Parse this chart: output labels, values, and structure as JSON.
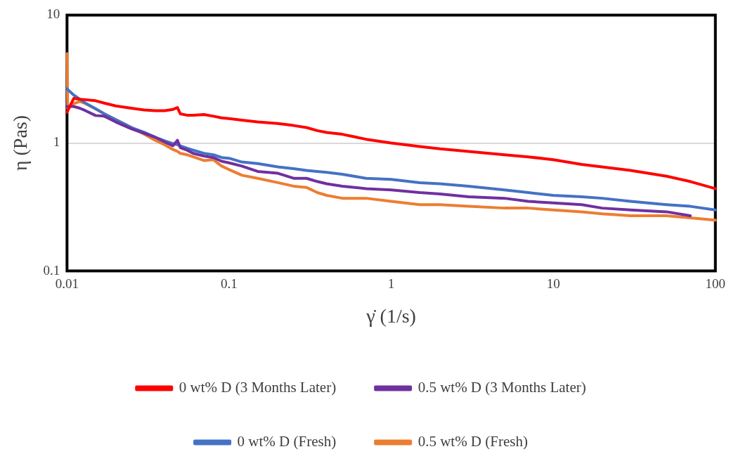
{
  "chart_data": {
    "type": "line",
    "xlabel": "γ̇ (1/s)",
    "ylabel": "η (Pas)",
    "log": "xy",
    "grid": "y",
    "legend": "bottom",
    "marker": "none",
    "line_style": "solid",
    "xlim": [
      0.01,
      100
    ],
    "xticks": [
      0.01,
      0.1,
      1,
      10,
      100
    ],
    "ylim": [
      0.1,
      10
    ],
    "yticks": [
      0.1,
      1,
      10
    ],
    "x": [
      0.01,
      0.011,
      0.012,
      0.013,
      0.015,
      0.017,
      0.02,
      0.025,
      0.03,
      0.035,
      0.04,
      0.045,
      0.048,
      0.05,
      0.055,
      0.06,
      0.07,
      0.08,
      0.09,
      0.1,
      0.12,
      0.15,
      0.2,
      0.25,
      0.3,
      0.35,
      0.4,
      0.5,
      0.7,
      1,
      1.5,
      2,
      3,
      5,
      7,
      10,
      15,
      20,
      30,
      50,
      70,
      100
    ],
    "series": [
      {
        "name": "0 wt% D (3 Months Later)",
        "color": "#ff0000",
        "values": [
          1.74,
          2.23,
          2.2,
          2.18,
          2.14,
          2.05,
          1.95,
          1.87,
          1.81,
          1.79,
          1.79,
          1.83,
          1.89,
          1.69,
          1.65,
          1.65,
          1.67,
          1.62,
          1.57,
          1.55,
          1.51,
          1.46,
          1.42,
          1.37,
          1.32,
          1.25,
          1.21,
          1.17,
          1.07,
          1.0,
          0.94,
          0.9,
          0.86,
          0.81,
          0.78,
          0.74,
          0.68,
          0.65,
          0.61,
          0.55,
          0.5,
          0.44
        ]
      },
      {
        "name": "0.5 wt% D (3 Months Later)",
        "color": "#7030a0",
        "values": [
          1.93,
          1.93,
          1.87,
          1.79,
          1.64,
          1.62,
          1.46,
          1.29,
          1.19,
          1.11,
          1.02,
          0.95,
          1.05,
          0.92,
          0.88,
          0.83,
          0.79,
          0.77,
          0.72,
          0.7,
          0.66,
          0.6,
          0.58,
          0.53,
          0.53,
          0.5,
          0.48,
          0.46,
          0.44,
          0.43,
          0.41,
          0.4,
          0.38,
          0.37,
          0.35,
          0.34,
          0.33,
          0.31,
          0.3,
          0.29,
          0.27,
          null
        ]
      },
      {
        "name": "0 wt% D (Fresh)",
        "color": "#4472c4",
        "values": [
          2.65,
          2.37,
          2.2,
          2.05,
          1.85,
          1.69,
          1.52,
          1.32,
          1.21,
          1.11,
          1.04,
          0.99,
          0.97,
          0.95,
          0.91,
          0.88,
          0.83,
          0.81,
          0.77,
          0.76,
          0.71,
          0.69,
          0.65,
          0.63,
          0.61,
          0.6,
          0.59,
          0.57,
          0.53,
          0.52,
          0.49,
          0.48,
          0.46,
          0.43,
          0.41,
          0.39,
          0.38,
          0.37,
          0.35,
          0.33,
          0.32,
          0.3
        ]
      },
      {
        "name": "0.5 wt% D (Fresh)",
        "color": "#ed7d31",
        "x": [
          0.01,
          0.0101,
          0.011,
          0.012,
          0.013,
          0.015,
          0.017,
          0.02,
          0.025,
          0.03,
          0.035,
          0.04,
          0.045,
          0.048,
          0.05,
          0.055,
          0.06,
          0.07,
          0.08,
          0.09,
          0.1,
          0.12,
          0.15,
          0.2,
          0.25,
          0.3,
          0.35,
          0.4,
          0.5,
          0.7,
          1,
          1.5,
          2,
          3,
          5,
          7,
          10,
          15,
          20,
          30,
          50,
          70,
          100
        ],
        "values": [
          5.0,
          1.85,
          2.03,
          2.11,
          2.03,
          1.85,
          1.69,
          1.52,
          1.32,
          1.17,
          1.05,
          0.97,
          0.89,
          0.86,
          0.83,
          0.81,
          0.78,
          0.73,
          0.74,
          0.66,
          0.62,
          0.56,
          0.53,
          0.49,
          0.46,
          0.45,
          0.41,
          0.39,
          0.37,
          0.37,
          0.35,
          0.33,
          0.33,
          0.32,
          0.31,
          0.31,
          0.3,
          0.29,
          0.28,
          0.27,
          0.27,
          0.26,
          0.25
        ]
      }
    ]
  }
}
